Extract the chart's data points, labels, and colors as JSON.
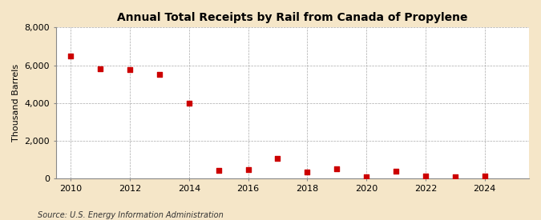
{
  "title": "Annual Total Receipts by Rail from Canada of Propylene",
  "ylabel": "Thousand Barrels",
  "source": "Source: U.S. Energy Information Administration",
  "years": [
    2010,
    2011,
    2012,
    2013,
    2014,
    2015,
    2016,
    2017,
    2018,
    2019,
    2020,
    2021,
    2022,
    2023,
    2024
  ],
  "values": [
    6500,
    5800,
    5750,
    5500,
    4000,
    420,
    450,
    1050,
    350,
    520,
    75,
    370,
    150,
    100,
    120
  ],
  "marker_color": "#cc0000",
  "marker_size": 4,
  "fig_bg_color": "#f5e6c8",
  "plot_bg_color": "#ffffff",
  "grid_color": "#aaaaaa",
  "ylim": [
    0,
    8000
  ],
  "yticks": [
    0,
    2000,
    4000,
    6000,
    8000
  ],
  "xlim": [
    2009.5,
    2025.5
  ],
  "xticks": [
    2010,
    2012,
    2014,
    2016,
    2018,
    2020,
    2022,
    2024
  ]
}
